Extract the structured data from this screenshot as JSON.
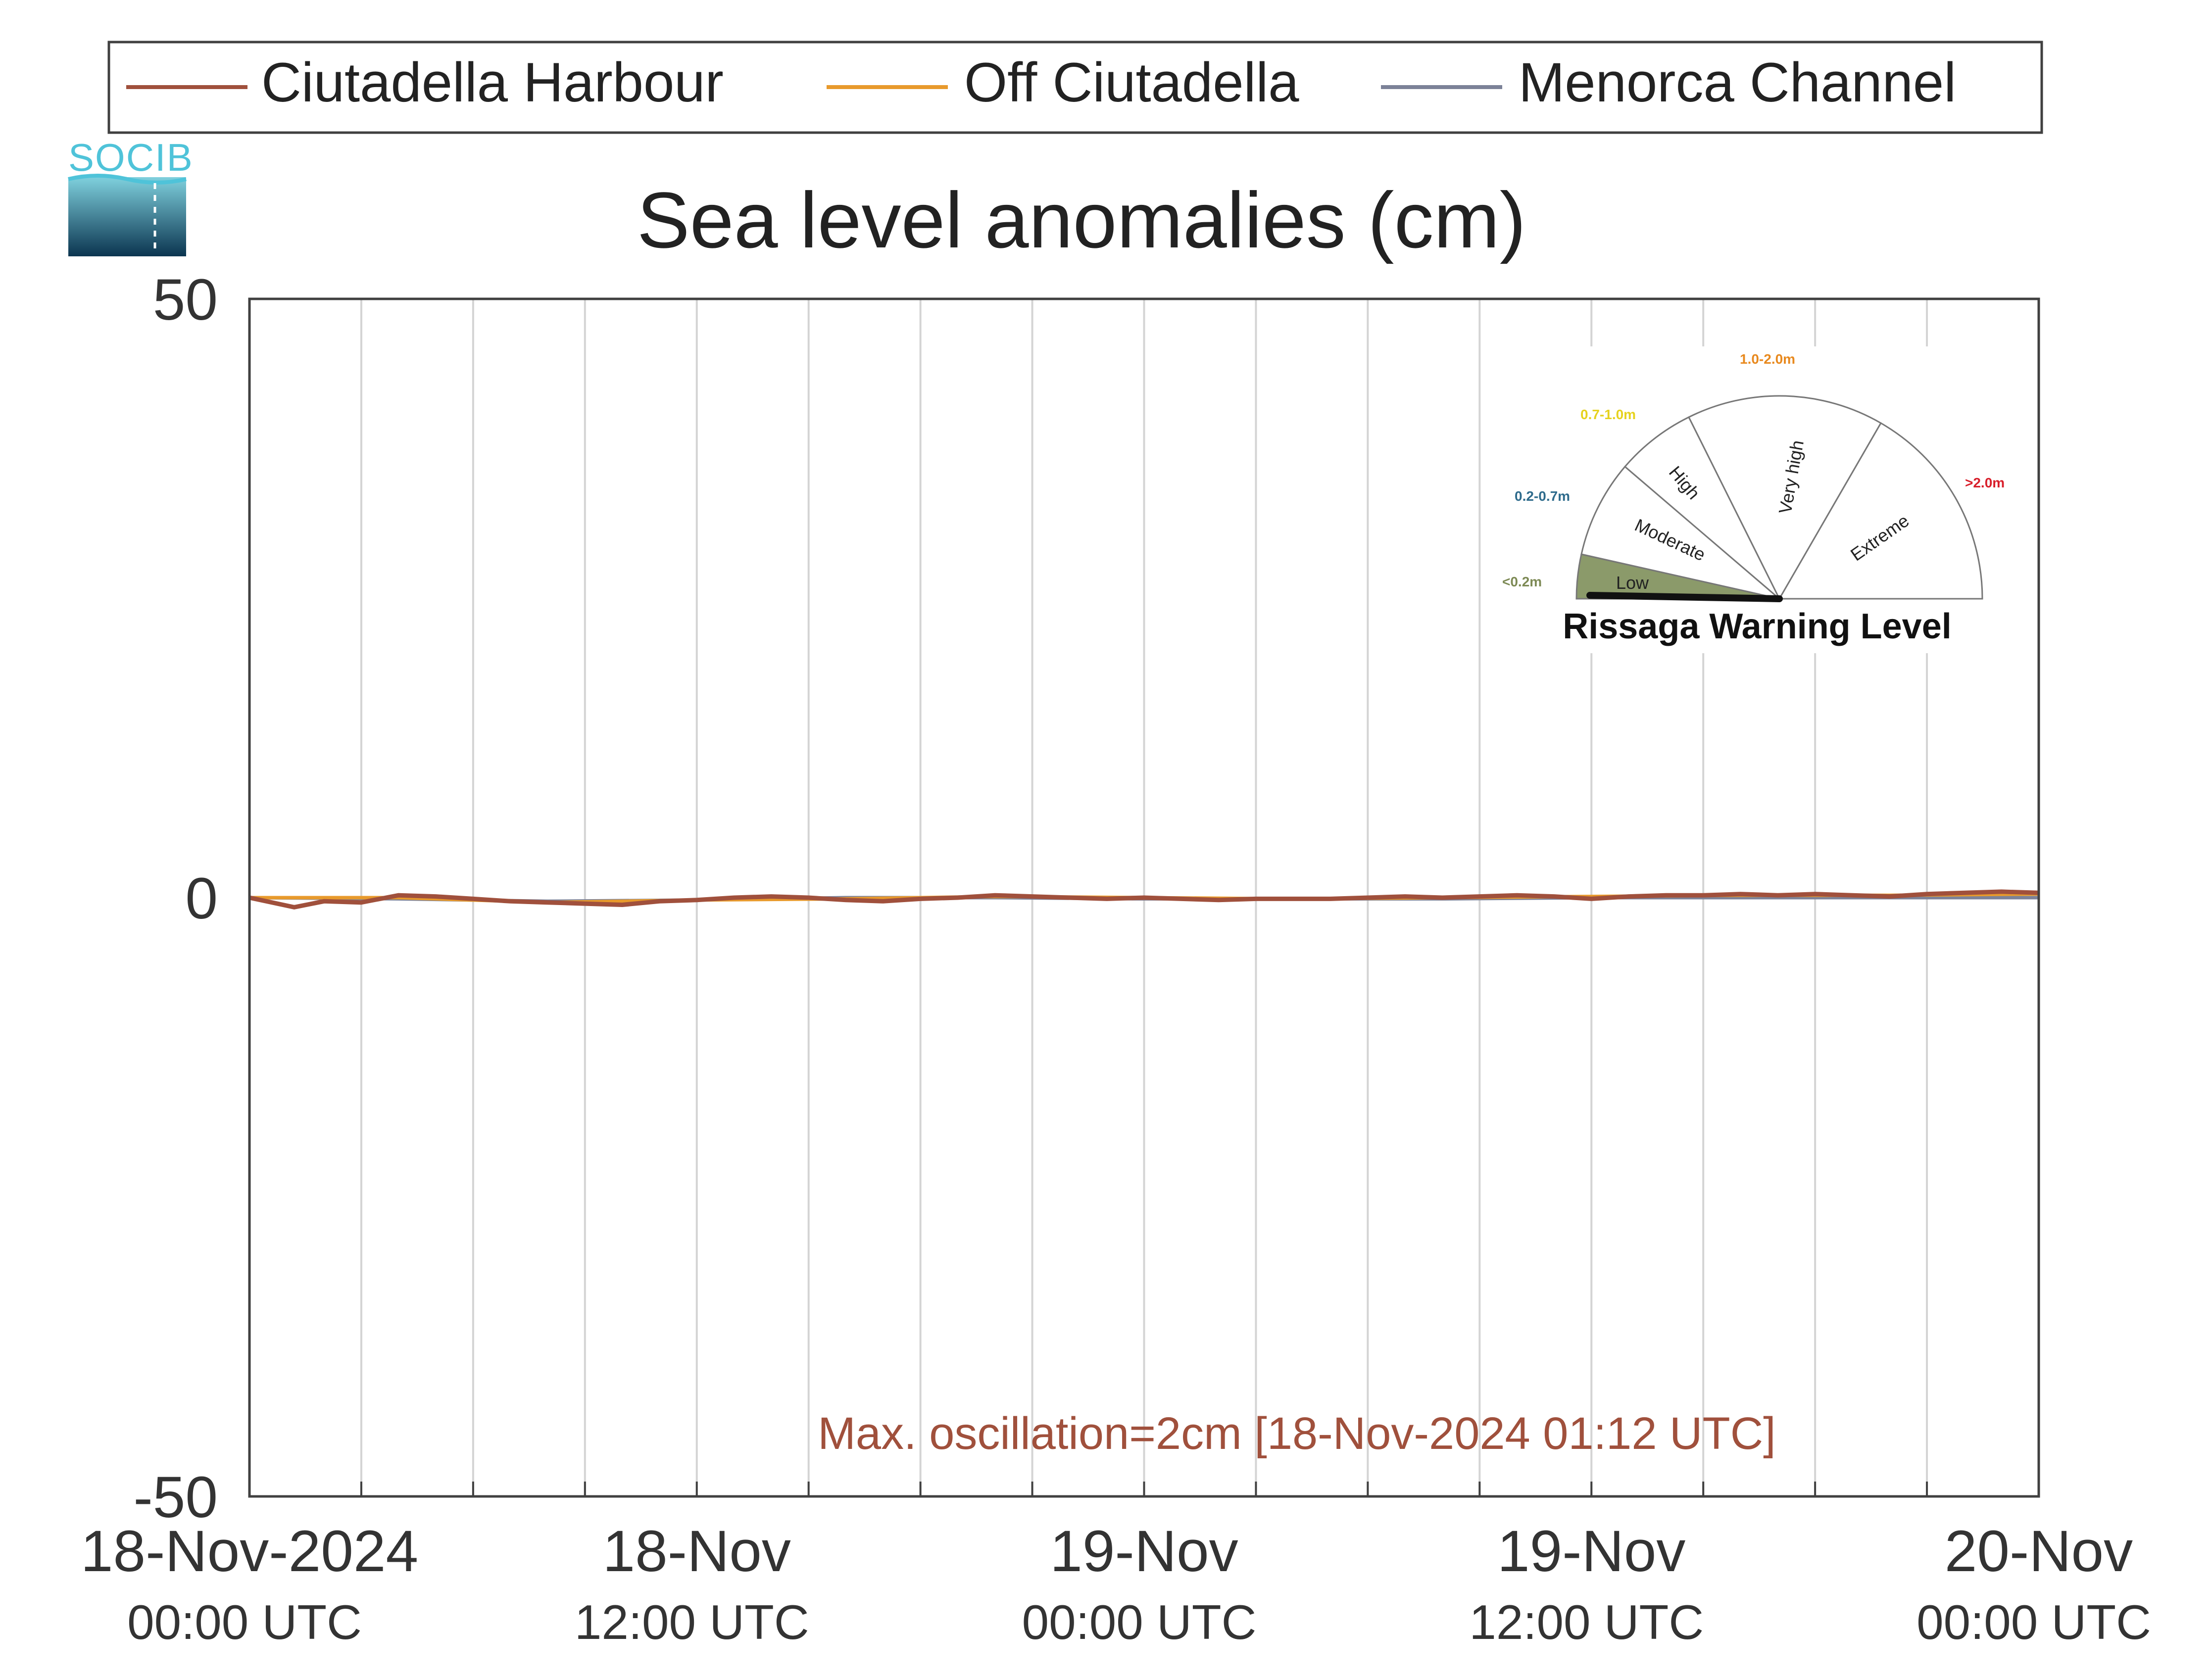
{
  "colors": {
    "ciutadella_harbour": "#a0503c",
    "off_ciutadella": "#e89a2c",
    "menorca_channel": "#7c8298",
    "axis": "#404040",
    "grid": "#d4d4d4",
    "annotation": "#a0503c",
    "logo_text": "#4fc3d9"
  },
  "logo": {
    "text": "SOCIB"
  },
  "legend": {
    "items": [
      {
        "label": "Ciutadella Harbour",
        "color_key": "ciutadella_harbour"
      },
      {
        "label": "Off Ciutadella",
        "color_key": "off_ciutadella"
      },
      {
        "label": "Menorca Channel",
        "color_key": "menorca_channel"
      }
    ]
  },
  "annotation": {
    "text": "Max. oscillation=2cm [18-Nov-2024 01:12 UTC]"
  },
  "gauge": {
    "title": "Rissaga Warning Level",
    "levels": [
      {
        "name": "Low",
        "range": "<0.2m",
        "range_color": "#7d8a55",
        "fill": "#8b9a6a"
      },
      {
        "name": "Moderate",
        "range": "0.2-0.7m",
        "range_color": "#2e6b8c",
        "fill": "#ffffff"
      },
      {
        "name": "High",
        "range": "0.7-1.0m",
        "range_color": "#e6d21e",
        "fill": "#ffffff"
      },
      {
        "name": "Very high",
        "range": "1.0-2.0m",
        "range_color": "#e8891e",
        "fill": "#ffffff"
      },
      {
        "name": "Extreme",
        "range": ">2.0m",
        "range_color": "#d81e2a",
        "fill": "#ffffff"
      }
    ],
    "current_level": "Low"
  },
  "chart_data": {
    "type": "line",
    "title": "Sea level anomalies (cm)",
    "xlabel": "",
    "ylabel": "",
    "ylim": [
      -50,
      50
    ],
    "yticks": [
      -50,
      0,
      50
    ],
    "xlim": [
      "2024-11-18T00:00",
      "2024-11-20T00:00"
    ],
    "xticks": [
      {
        "at": "2024-11-18T00:00",
        "line1": "18-Nov-2024",
        "line2": "00:00 UTC"
      },
      {
        "at": "2024-11-18T12:00",
        "line1": "18-Nov",
        "line2": "12:00 UTC"
      },
      {
        "at": "2024-11-19T00:00",
        "line1": "19-Nov",
        "line2": "00:00 UTC"
      },
      {
        "at": "2024-11-19T12:00",
        "line1": "19-Nov",
        "line2": "12:00 UTC"
      },
      {
        "at": "2024-11-20T00:00",
        "line1": "20-Nov",
        "line2": "00:00 UTC"
      }
    ],
    "grid": true,
    "grid_interval_hours": 3,
    "legend_position": "top",
    "series": [
      {
        "name": "Ciutadella Harbour",
        "color_key": "ciutadella_harbour",
        "x": [
          "2024-11-18T00:00",
          "2024-11-18T01:12",
          "2024-11-18T02:00",
          "2024-11-18T03:00",
          "2024-11-18T04:00",
          "2024-11-18T05:00",
          "2024-11-18T06:00",
          "2024-11-18T07:00",
          "2024-11-18T08:00",
          "2024-11-18T09:00",
          "2024-11-18T10:00",
          "2024-11-18T11:00",
          "2024-11-18T12:00",
          "2024-11-18T13:00",
          "2024-11-18T14:00",
          "2024-11-18T15:00",
          "2024-11-18T16:00",
          "2024-11-18T17:00",
          "2024-11-18T18:00",
          "2024-11-18T19:00",
          "2024-11-18T20:00",
          "2024-11-18T21:00",
          "2024-11-18T22:00",
          "2024-11-18T23:00",
          "2024-11-19T00:00",
          "2024-11-19T01:00",
          "2024-11-19T02:00",
          "2024-11-19T03:00",
          "2024-11-19T04:00",
          "2024-11-19T05:00",
          "2024-11-19T06:00",
          "2024-11-19T07:00",
          "2024-11-19T08:00",
          "2024-11-19T09:00",
          "2024-11-19T10:00",
          "2024-11-19T11:00",
          "2024-11-19T12:00",
          "2024-11-19T13:00",
          "2024-11-19T14:00",
          "2024-11-19T15:00",
          "2024-11-19T16:00",
          "2024-11-19T17:00",
          "2024-11-19T18:00",
          "2024-11-19T19:00",
          "2024-11-19T20:00",
          "2024-11-19T21:00",
          "2024-11-19T22:00",
          "2024-11-19T23:00",
          "2024-11-20T00:00"
        ],
        "y": [
          0.0,
          -0.8,
          -0.3,
          -0.4,
          0.2,
          0.1,
          -0.1,
          -0.3,
          -0.4,
          -0.5,
          -0.6,
          -0.3,
          -0.2,
          0.0,
          0.1,
          0.0,
          -0.2,
          -0.3,
          -0.1,
          0.0,
          0.2,
          0.1,
          0.0,
          -0.1,
          0.0,
          -0.1,
          -0.2,
          -0.1,
          -0.1,
          -0.1,
          0.0,
          0.1,
          0.0,
          0.1,
          0.2,
          0.1,
          -0.1,
          0.1,
          0.2,
          0.2,
          0.3,
          0.2,
          0.3,
          0.2,
          0.1,
          0.3,
          0.4,
          0.5,
          0.4
        ]
      },
      {
        "name": "Off Ciutadella",
        "color_key": "off_ciutadella",
        "x": [
          "2024-11-18T00:00",
          "2024-11-18T04:00",
          "2024-11-18T08:00",
          "2024-11-18T12:00",
          "2024-11-18T16:00",
          "2024-11-18T20:00",
          "2024-11-19T00:00",
          "2024-11-19T04:00",
          "2024-11-19T08:00",
          "2024-11-19T12:00",
          "2024-11-19T16:00",
          "2024-11-19T20:00",
          "2024-11-20T00:00"
        ],
        "y": [
          0.0,
          0.0,
          -0.4,
          -0.2,
          -0.1,
          0.1,
          0.0,
          -0.1,
          0.0,
          0.1,
          0.2,
          0.2,
          0.3
        ]
      },
      {
        "name": "Menorca Channel",
        "color_key": "menorca_channel",
        "x": [
          "2024-11-18T00:00",
          "2024-11-18T04:00",
          "2024-11-18T08:00",
          "2024-11-18T12:00",
          "2024-11-18T16:00",
          "2024-11-18T20:00",
          "2024-11-19T00:00",
          "2024-11-19T04:00",
          "2024-11-19T08:00",
          "2024-11-19T12:00",
          "2024-11-19T16:00",
          "2024-11-19T20:00",
          "2024-11-20T00:00"
        ],
        "y": [
          0.0,
          -0.1,
          -0.3,
          -0.2,
          0.0,
          0.0,
          -0.1,
          -0.1,
          -0.1,
          0.0,
          0.0,
          0.0,
          0.0
        ]
      }
    ]
  }
}
